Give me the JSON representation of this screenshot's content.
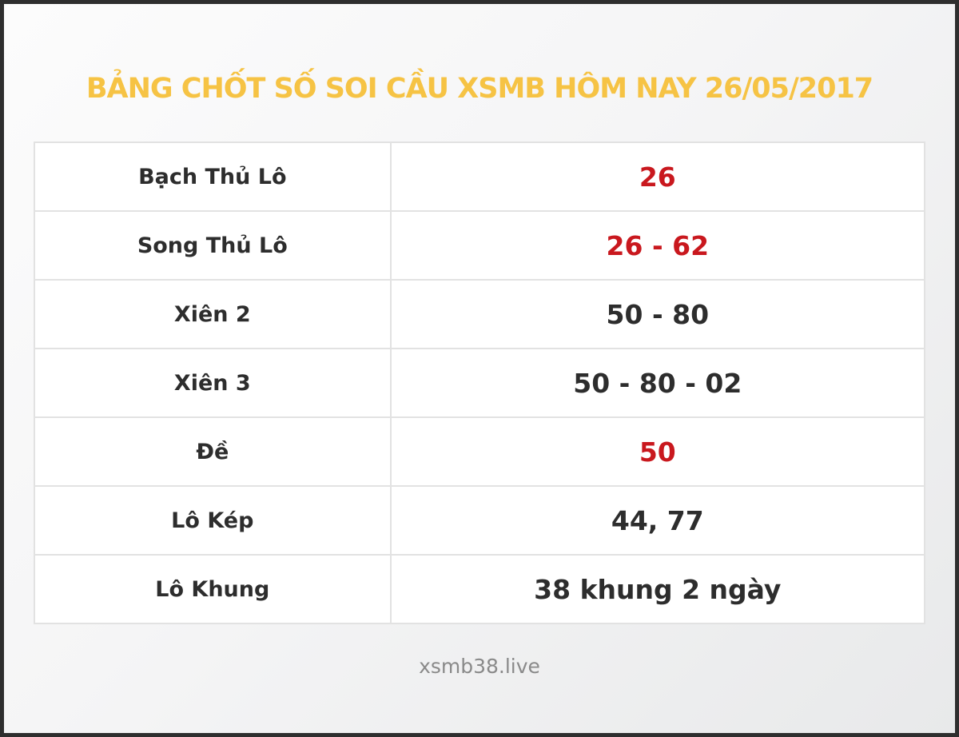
{
  "header": {
    "title": "BẢNG CHỐT SỐ SOI CẦU XSMB HÔM NAY 26/05/2017"
  },
  "table": {
    "rows": [
      {
        "label": "Bạch Thủ Lô",
        "value": "26",
        "highlight": true
      },
      {
        "label": "Song Thủ Lô",
        "value": "26 - 62",
        "highlight": true
      },
      {
        "label": "Xiên 2",
        "value": "50 - 80",
        "highlight": false
      },
      {
        "label": "Xiên 3",
        "value": "50 - 80 - 02",
        "highlight": false
      },
      {
        "label": "Đề",
        "value": "50",
        "highlight": true
      },
      {
        "label": "Lô Kép",
        "value": "44, 77",
        "highlight": false
      },
      {
        "label": "Lô Khung",
        "value": "38 khung 2 ngày",
        "highlight": false
      }
    ]
  },
  "footer": {
    "site": "xsmb38.live"
  },
  "colors": {
    "title_gold": "#f6c344",
    "value_red": "#c9181e",
    "text_dark": "#2d2d2d",
    "footer_gray": "#8a8a8a",
    "frame_border": "#2e2e2e",
    "cell_border": "#e2e2e2"
  }
}
